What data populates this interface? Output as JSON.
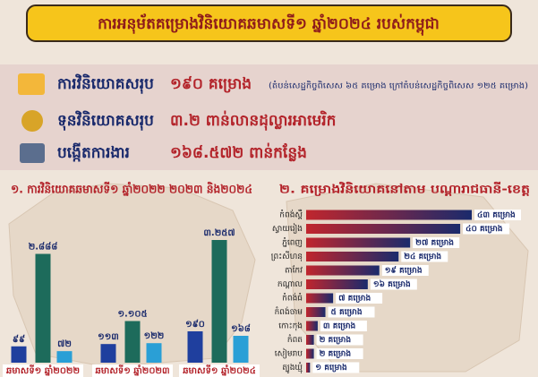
{
  "header": {
    "title": "ការអនុម័តគម្រោងវិនិយោគឆមាសទី១ ឆ្នាំ២០២៤ របស់កម្ពុជា"
  },
  "summary": {
    "rows": [
      {
        "label": "ការវិនិយោគសរុប",
        "value": "១៩០ គម្រោង",
        "note": "(តំបន់សេដ្ឋកិច្ចពិសេស ៦៥ គម្រោង ក្រៅតំបន់សេដ្ឋកិច្ចពិសេស ១២៥ គម្រោង)"
      },
      {
        "label": "ទុនវិនិយោគសរុប",
        "value": "៣.២ ពាន់លានដុល្លារអាមេរិក"
      },
      {
        "label": "បង្កើតការងារ",
        "value": "១៦៨.៥៧២ ពាន់កន្លែង"
      }
    ]
  },
  "chart_data": [
    {
      "type": "bar",
      "title": "១. ការវិនិយោគឆមាសទី១ ឆ្នាំ២០២២ ២០២៣ និង២០២៤",
      "categories": [
        "ឆមាសទី១ ឆ្នាំ២០២២",
        "ឆមាសទី១ ឆ្នាំ២០២៣",
        "ឆមាសទី១ ឆ្នាំ២០២៤"
      ],
      "series": [
        {
          "color": "#1f3f9e",
          "values": [
            99,
            113,
            190
          ],
          "value_labels": [
            "៩៩",
            "១១៣",
            "១៩០"
          ]
        },
        {
          "color": "#1d6b5b",
          "values": [
            2.888,
            1.105,
            3.257
          ],
          "value_labels": [
            "២.៨៨៨",
            "១.១០៥",
            "៣.២៥៧"
          ]
        },
        {
          "color": "#2a9fd6",
          "values": [
            72,
            122,
            168
          ],
          "value_labels": [
            "៧២",
            "១២២",
            "១៦៨"
          ]
        }
      ]
    },
    {
      "type": "hbar",
      "title": "២. គម្រោងវិនិយោគនៅតាម បណ្ដារាជធានី-ខេត្ត",
      "categories": [
        "កំពង់ស្ពឺ",
        "ស្វាយរៀង",
        "ភ្នំពេញ",
        "ព្រះសីហនុ",
        "តាកែវ",
        "កណ្ដាល",
        "កំពង់ធំ",
        "កំពង់ចាម",
        "កោះកុង",
        "កំពត",
        "សៀមរាប",
        "ត្បូងឃ្មុំ"
      ],
      "values": [
        43,
        40,
        27,
        24,
        19,
        16,
        7,
        5,
        3,
        2,
        2,
        1
      ],
      "value_labels": [
        "៤៣ គម្រោង",
        "៤០ គម្រោង",
        "២៧ គម្រោង",
        "២៤ គម្រោង",
        "១៩ គម្រោង",
        "១៦ គម្រោង",
        "៧ គម្រោង",
        "៥ គម្រោង",
        "៣ គម្រោង",
        "២ គម្រោង",
        "២ គម្រោង",
        "១ គម្រោង"
      ],
      "colors": [
        "#c0262d",
        "#1a2a6c"
      ]
    }
  ]
}
